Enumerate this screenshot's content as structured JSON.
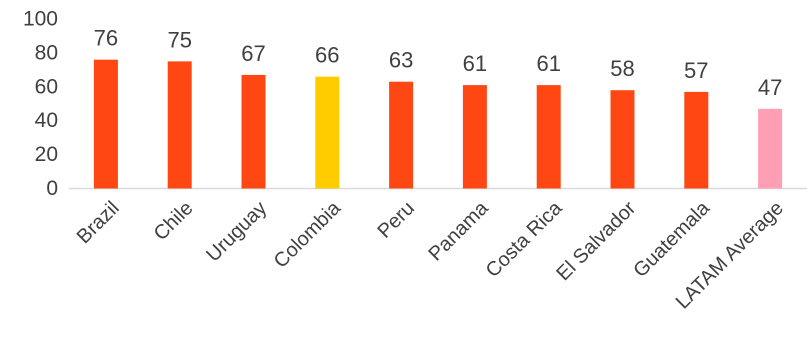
{
  "chart_data": {
    "type": "bar",
    "title": "",
    "xlabel": "",
    "ylabel": "",
    "categories": [
      "Brazil",
      "Chile",
      "Uruguay",
      "Colombia",
      "Peru",
      "Panama",
      "Costa Rica",
      "El Salvador",
      "Guatemala",
      "LATAM Average"
    ],
    "values": [
      76,
      75,
      67,
      66,
      63,
      61,
      61,
      58,
      57,
      47
    ],
    "ylim": [
      0,
      100
    ],
    "yticks": [
      0,
      20,
      40,
      60,
      80,
      100
    ],
    "grid": false,
    "legend": "none",
    "bar_colors": [
      "#FF4713",
      "#FF4713",
      "#FF4713",
      "#FFCC00",
      "#FF4713",
      "#FF4713",
      "#FF4713",
      "#FF4713",
      "#FF4713",
      "#FF9EB5"
    ],
    "data_labels": true
  }
}
